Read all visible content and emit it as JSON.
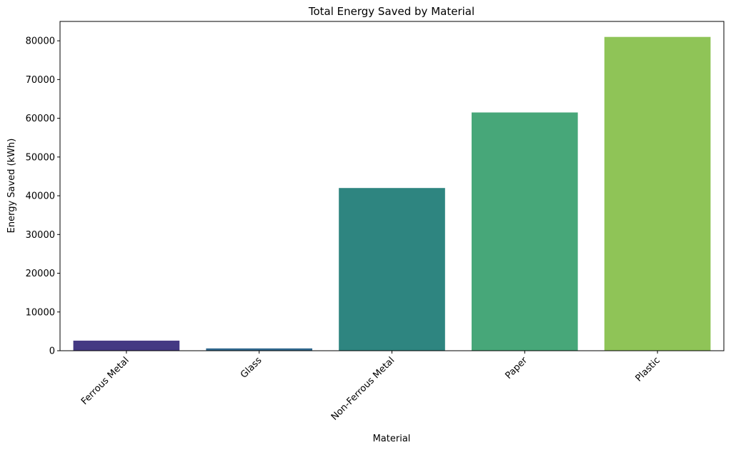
{
  "chart_data": {
    "type": "bar",
    "title": "Total Energy Saved by Material",
    "xlabel": "Material",
    "ylabel": "Energy Saved (kWh)",
    "categories": [
      "Ferrous Metal",
      "Glass",
      "Non-Ferrous Metal",
      "Paper",
      "Plastic"
    ],
    "values": [
      2600,
      600,
      42000,
      61500,
      81000
    ],
    "colors": [
      "#443983",
      "#31688e",
      "#2e8580",
      "#47a779",
      "#8fc457"
    ],
    "ylim": [
      0,
      85000
    ],
    "yticks": [
      0,
      10000,
      20000,
      30000,
      40000,
      50000,
      60000,
      70000,
      80000
    ],
    "ytick_labels": [
      "0",
      "10000",
      "20000",
      "30000",
      "40000",
      "50000",
      "60000",
      "70000",
      "80000"
    ],
    "xtick_rotation": 45,
    "grid": false,
    "legend": "none"
  }
}
